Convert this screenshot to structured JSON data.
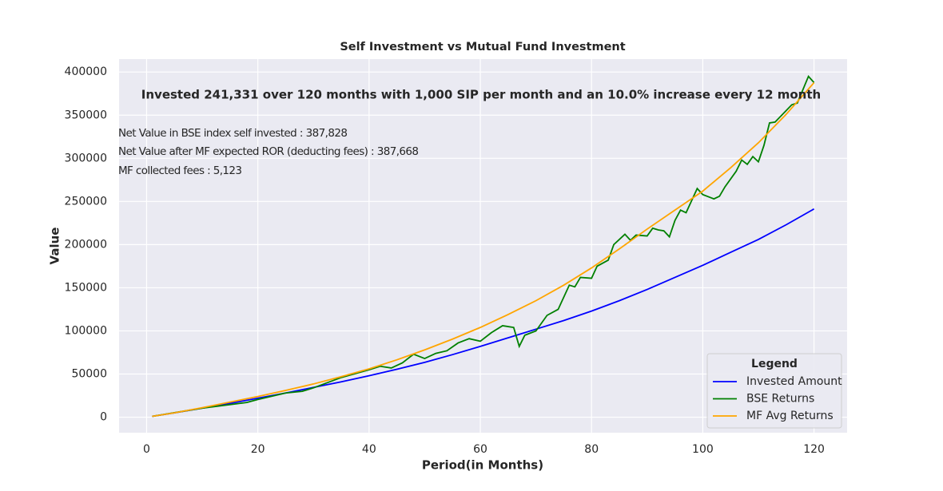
{
  "chart_data": {
    "type": "line",
    "title": "Self Investment vs Mutual Fund Investment",
    "xlabel": "Period(in Months)",
    "ylabel": "Value",
    "annotation": "Invested 241,331 over 120 months with 1,000 SIP per month and an 10.0% increase every 12 month",
    "notes": [
      "Net Value in BSE index self invested : 387,828",
      "Net Value after MF expected ROR (deducting fees) : 387,668",
      "MF collected fees : 5,123"
    ],
    "legend_title": "Legend",
    "legend_loc": "lower right",
    "grid": true,
    "xlim": [
      -4.95,
      125.95
    ],
    "xticks": [
      0,
      20,
      40,
      60,
      80,
      100,
      120
    ],
    "ylim": [
      -18000,
      415000
    ],
    "yticks": [
      0,
      50000,
      100000,
      150000,
      200000,
      250000,
      300000,
      350000,
      400000
    ],
    "series": [
      {
        "name": "Invested Amount",
        "color": "#0000ff",
        "x": [
          1,
          5,
          10,
          15,
          20,
          25,
          30,
          35,
          40,
          45,
          50,
          55,
          60,
          65,
          70,
          75,
          80,
          85,
          90,
          95,
          100,
          105,
          110,
          115,
          120
        ],
        "values": [
          1000,
          5000,
          10500,
          16000,
          22000,
          28000,
          34500,
          41000,
          48000,
          55500,
          63500,
          72500,
          82000,
          92000,
          102000,
          112000,
          123000,
          135000,
          148000,
          162000,
          176000,
          191000,
          206000,
          223000,
          241331
        ]
      },
      {
        "name": "BSE Returns",
        "color": "#008000",
        "x": [
          1,
          10,
          18,
          20,
          25,
          28,
          30,
          35,
          40,
          42,
          44,
          46,
          48,
          50,
          52,
          54,
          56,
          58,
          60,
          62,
          64,
          66,
          67,
          68,
          70,
          72,
          74,
          76,
          77,
          78,
          80,
          81,
          83,
          84,
          86,
          87,
          88,
          90,
          91,
          92,
          93,
          94,
          95,
          96,
          97,
          99,
          100,
          102,
          103,
          104,
          106,
          107,
          108,
          109,
          110,
          111,
          112,
          113,
          116,
          117,
          119,
          120
        ],
        "values": [
          1000,
          10500,
          17000,
          20500,
          28000,
          30000,
          34000,
          46000,
          55000,
          59000,
          57000,
          63000,
          73000,
          68000,
          74000,
          77000,
          86000,
          91000,
          88000,
          98000,
          106000,
          104000,
          82000,
          95000,
          100000,
          118000,
          125000,
          153000,
          151000,
          162000,
          161000,
          175000,
          182000,
          200000,
          212000,
          205000,
          211000,
          210000,
          219000,
          217000,
          216000,
          209000,
          228000,
          240000,
          237000,
          265000,
          258000,
          253000,
          256000,
          267000,
          285000,
          298000,
          293000,
          302000,
          296000,
          315000,
          341000,
          342000,
          362000,
          364000,
          395000,
          387828
        ]
      },
      {
        "name": "MF Avg Returns",
        "color": "#ffa500",
        "x": [
          1,
          5,
          10,
          15,
          20,
          25,
          30,
          35,
          40,
          45,
          50,
          55,
          60,
          65,
          70,
          75,
          80,
          85,
          90,
          95,
          100,
          105,
          110,
          115,
          120
        ],
        "values": [
          1000,
          5000,
          11000,
          17500,
          24000,
          31000,
          38500,
          47000,
          56000,
          66500,
          78000,
          90500,
          104000,
          119000,
          135000,
          153000,
          173000,
          195000,
          218000,
          240000,
          262000,
          289000,
          318000,
          351000,
          387668
        ]
      }
    ]
  }
}
